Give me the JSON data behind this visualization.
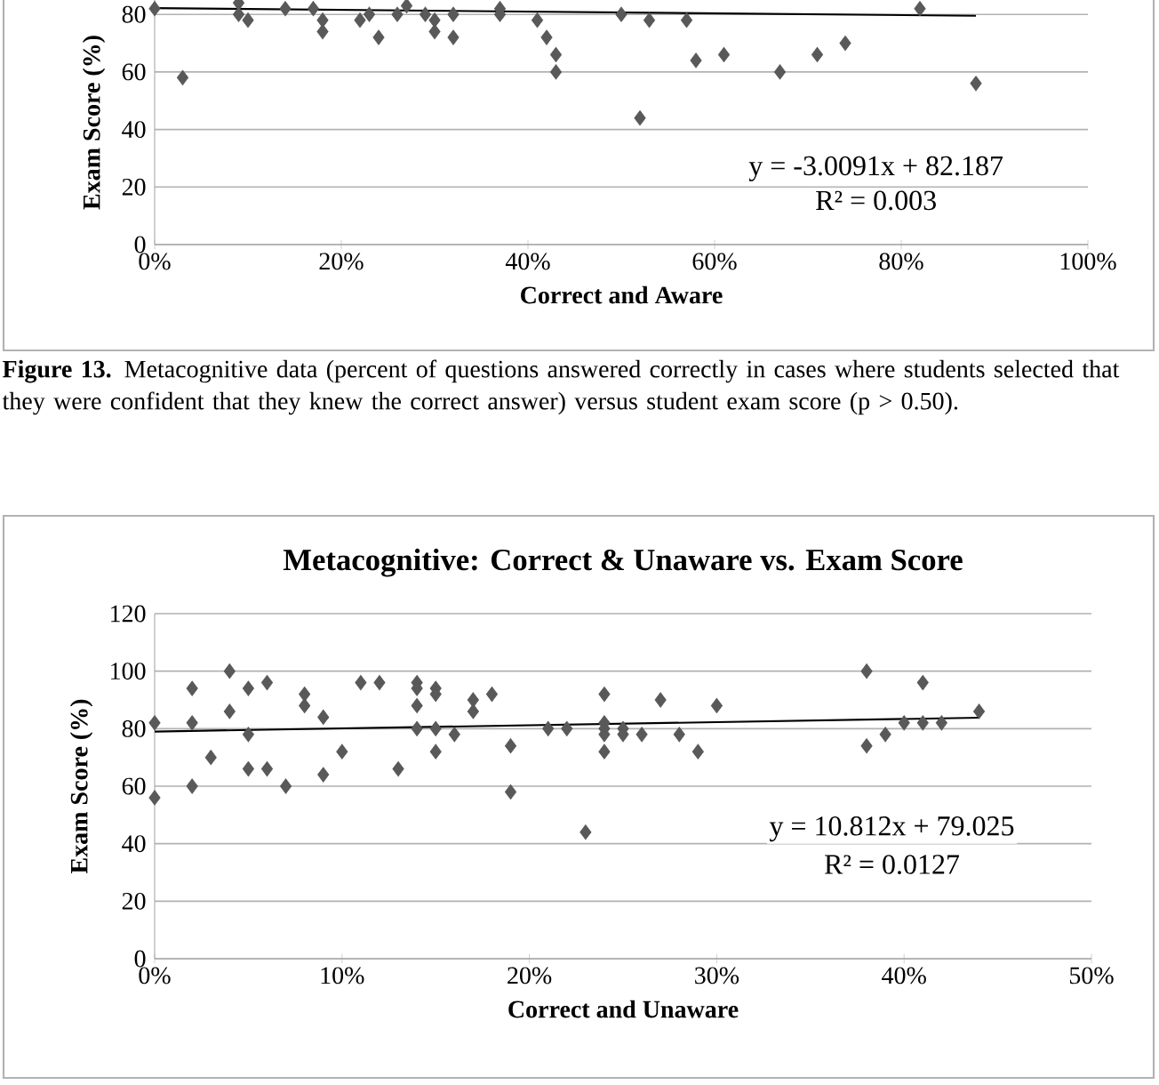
{
  "chart_data": [
    {
      "type": "scatter",
      "xlabel": "Correct and Aware",
      "ylabel": "Exam Score (%)",
      "marker": "diamond",
      "grid": "y",
      "xlim": [
        0,
        1
      ],
      "ylim": [
        0,
        85
      ],
      "xticks": [
        {
          "value": 0,
          "label": "0%"
        },
        {
          "value": 0.2,
          "label": "20%"
        },
        {
          "value": 0.4,
          "label": "40%"
        },
        {
          "value": 0.6,
          "label": "60%"
        },
        {
          "value": 0.8,
          "label": "80%"
        },
        {
          "value": 1,
          "label": "100%"
        }
      ],
      "yticks": [
        0,
        20,
        40,
        60,
        80
      ],
      "annotations": [
        "y = -3.0091x + 82.187",
        "R² = 0.003",
        "**Figure 13.** Metacognitive data (percent of questions answered correctly in cases where students selected that they were confident that they knew the correct answer) versus student exam score (p > 0.50)."
      ],
      "series": [
        {
          "color": "#595959",
          "x": [
            0,
            0.03,
            0.09,
            0.09,
            0.1,
            0.14,
            0.17,
            0.18,
            0.18,
            0.22,
            0.23,
            0.24,
            0.26,
            0.27,
            0.29,
            0.3,
            0.3,
            0.32,
            0.32,
            0.37,
            0.37,
            0.41,
            0.42,
            0.43,
            0.43,
            0.5,
            0.52,
            0.53,
            0.57,
            0.58,
            0.61,
            0.67,
            0.71,
            0.74,
            0.82,
            0.88
          ],
          "values": [
            82,
            58,
            84,
            80,
            78,
            82,
            82,
            78,
            74,
            78,
            80,
            72,
            80,
            83,
            80,
            78,
            74,
            80,
            72,
            82,
            80,
            78,
            72,
            66,
            60,
            80,
            44,
            78,
            78,
            64,
            66,
            60,
            66,
            70,
            82,
            56
          ]
        },
        {
          "type": "line",
          "marker": "none",
          "line_style": "solid",
          "color": "#000000",
          "x": [
            0,
            0.88
          ],
          "values": [
            82.2,
            79.5
          ]
        }
      ]
    },
    {
      "type": "scatter",
      "title": "Metacognitive: Correct & Unaware vs. Exam  Score",
      "xlabel": "Correct and Unaware",
      "ylabel": "Exam Score (%)",
      "marker": "diamond",
      "grid": "y",
      "xlim": [
        0,
        0.5
      ],
      "ylim": [
        0,
        120
      ],
      "xticks": [
        {
          "value": 0,
          "label": "0%"
        },
        {
          "value": 0.1,
          "label": "10%"
        },
        {
          "value": 0.2,
          "label": "20%"
        },
        {
          "value": 0.3,
          "label": "30%"
        },
        {
          "value": 0.4,
          "label": "40%"
        },
        {
          "value": 0.5,
          "label": "50%"
        }
      ],
      "yticks": [
        0,
        20,
        40,
        60,
        80,
        100,
        120
      ],
      "annotations": [
        "y = 10.812x + 79.025",
        "R² = 0.0127"
      ],
      "series": [
        {
          "color": "#595959",
          "x": [
            0,
            0,
            0.02,
            0.02,
            0.02,
            0.03,
            0.04,
            0.04,
            0.05,
            0.05,
            0.05,
            0.06,
            0.06,
            0.07,
            0.08,
            0.08,
            0.09,
            0.09,
            0.1,
            0.11,
            0.12,
            0.13,
            0.14,
            0.14,
            0.14,
            0.14,
            0.15,
            0.15,
            0.15,
            0.15,
            0.16,
            0.17,
            0.17,
            0.18,
            0.19,
            0.19,
            0.21,
            0.22,
            0.23,
            0.24,
            0.24,
            0.24,
            0.24,
            0.24,
            0.25,
            0.25,
            0.26,
            0.27,
            0.28,
            0.29,
            0.3,
            0.38,
            0.38,
            0.39,
            0.4,
            0.41,
            0.41,
            0.42,
            0.44
          ],
          "values": [
            82,
            56,
            94,
            82,
            60,
            70,
            100,
            86,
            94,
            78,
            66,
            96,
            66,
            60,
            92,
            88,
            84,
            64,
            72,
            96,
            96,
            66,
            96,
            94,
            88,
            80,
            94,
            92,
            80,
            72,
            78,
            90,
            86,
            92,
            74,
            58,
            80,
            80,
            44,
            92,
            82,
            80,
            78,
            72,
            80,
            78,
            78,
            90,
            78,
            72,
            88,
            100,
            74,
            78,
            82,
            96,
            82,
            82,
            86
          ]
        },
        {
          "type": "line",
          "marker": "none",
          "line_style": "solid",
          "color": "#000000",
          "x": [
            0,
            0.44
          ],
          "values": [
            79.0,
            83.8
          ]
        }
      ]
    }
  ]
}
